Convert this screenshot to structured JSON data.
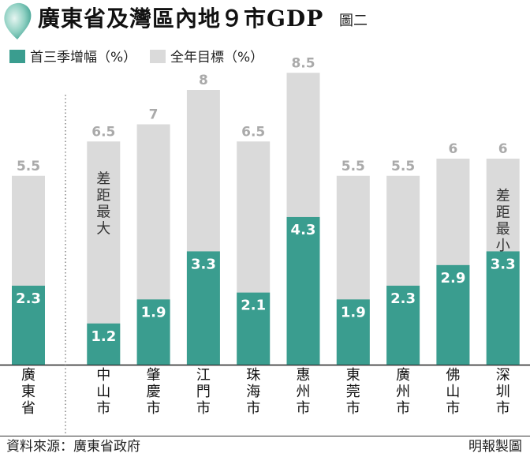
{
  "header": {
    "title": "廣東省及灣區內地９市GDP",
    "figure_label": "圖二",
    "accent_color": "#2e9e8f",
    "icon": "water-drop-icon"
  },
  "legend": {
    "items": [
      {
        "label": "首三季增幅（%）",
        "color": "#3a9d8f"
      },
      {
        "label": "全年目標（%）",
        "color": "#dadada"
      }
    ]
  },
  "footer": {
    "source": "資料來源：廣東省政府",
    "credit": "明報製圖"
  },
  "chart_data": {
    "type": "bar",
    "categories": [
      "廣東省",
      "中山市",
      "肇慶市",
      "江門市",
      "珠海市",
      "惠州市",
      "東莞市",
      "廣州市",
      "佛山市",
      "深圳市"
    ],
    "series": [
      {
        "name": "首三季增幅（%）",
        "values": [
          2.3,
          1.2,
          1.9,
          3.3,
          2.1,
          4.3,
          1.9,
          2.3,
          2.9,
          3.3
        ],
        "color": "#3a9d8f"
      },
      {
        "name": "全年目標（%）",
        "values": [
          5.5,
          6.5,
          7,
          8,
          6.5,
          8.5,
          5.5,
          5.5,
          6,
          6
        ],
        "color": "#dadada"
      }
    ],
    "target_labels": [
      "5.5",
      "6.5",
      "7",
      "8",
      "6.5",
      "8.5",
      "5.5",
      "5.5",
      "6",
      "6"
    ],
    "actual_labels": [
      "2.3",
      "1.2",
      "1.9",
      "3.3",
      "2.1",
      "4.3",
      "1.9",
      "2.3",
      "2.9",
      "3.3"
    ],
    "annotations": [
      {
        "category": "中山市",
        "text": "差距最大"
      },
      {
        "category": "深圳市",
        "text": "差距最小"
      }
    ],
    "ylim": [
      0,
      8.5
    ],
    "grid": false,
    "legend_position": "top-left"
  }
}
